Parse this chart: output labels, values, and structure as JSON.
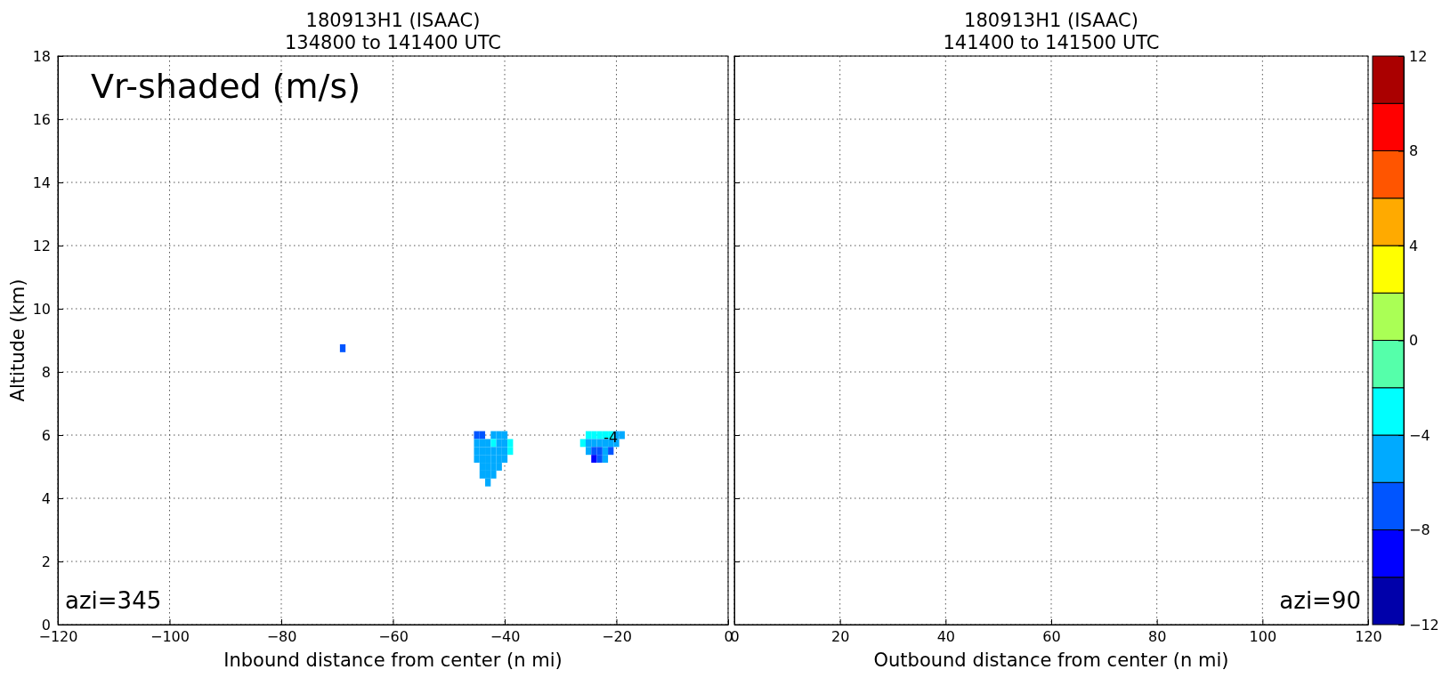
{
  "chart_data": [
    {
      "type": "scatter",
      "title": "180913H1 (ISAAC)",
      "subtitle": "134800 to 141400 UTC",
      "xlabel": "Inbound distance from center (n mi)",
      "ylabel": "Altitude (km)",
      "marker": "square",
      "grid": true,
      "xlim": [
        -120,
        0
      ],
      "xticks": [
        {
          "value": -120,
          "label": "−120"
        },
        {
          "value": -100,
          "label": "−100"
        },
        {
          "value": -80,
          "label": "−80"
        },
        {
          "value": -60,
          "label": "−60"
        },
        {
          "value": -40,
          "label": "−40"
        },
        {
          "value": -20,
          "label": "−20"
        },
        0
      ],
      "ylim": [
        0,
        18
      ],
      "yticks": [
        0,
        2,
        4,
        6,
        8,
        10,
        12,
        14,
        16,
        18
      ],
      "clim": [
        -12,
        12
      ],
      "cticks": [
        {
          "value": -12,
          "label": "−12"
        },
        {
          "value": -8,
          "label": "−8"
        },
        {
          "value": -4,
          "label": "−4"
        },
        0,
        4,
        8,
        12
      ],
      "x": [
        -69,
        -45,
        -44,
        -42,
        -41,
        -40,
        -45,
        -44,
        -43,
        -42,
        -41,
        -40,
        -39,
        -45,
        -44,
        -43,
        -42,
        -41,
        -40,
        -39,
        -45,
        -44,
        -43,
        -42,
        -41,
        -40,
        -44,
        -43,
        -42,
        -41,
        -44,
        -43,
        -42,
        -43,
        -25,
        -24,
        -23,
        -22,
        -21,
        -20,
        -19,
        -26,
        -25,
        -24,
        -23,
        -22,
        -21,
        -20,
        -25,
        -24,
        -23,
        -22,
        -21,
        -24,
        -23,
        -22
      ],
      "values": [
        8.75,
        6,
        6,
        6,
        6,
        6,
        5.75,
        5.75,
        5.75,
        5.75,
        5.75,
        5.75,
        5.75,
        5.5,
        5.5,
        5.5,
        5.5,
        5.5,
        5.5,
        5.5,
        5.25,
        5.25,
        5.25,
        5.25,
        5.25,
        5.25,
        5,
        5,
        5,
        5,
        4.75,
        4.75,
        4.75,
        4.5,
        6,
        6,
        6,
        6,
        6,
        6,
        6,
        5.75,
        5.75,
        5.75,
        5.75,
        5.75,
        5.75,
        5.75,
        5.5,
        5.5,
        5.5,
        5.5,
        5.5,
        5.25,
        5.25,
        5.25
      ],
      "cvalues": [
        -7,
        -7,
        -7,
        -5,
        -5,
        -5,
        -5,
        -5,
        -5,
        -3,
        -5,
        -5,
        -3,
        -5,
        -5,
        -5,
        -5,
        -5,
        -5,
        -3,
        -5,
        -5,
        -5,
        -5,
        -5,
        -5,
        -5,
        -5,
        -5,
        -5,
        -5,
        -5,
        -5,
        -5,
        -3,
        -3,
        -3,
        -3,
        -3,
        -5,
        -5,
        -3,
        -5,
        -5,
        -5,
        -5,
        -5,
        -5,
        -5,
        -7,
        -7,
        -5,
        -7,
        -9,
        -7,
        -5
      ],
      "annotations": [
        "Vr-shaded (m/s)",
        "azi=345",
        {
          "text": "-4",
          "x": -21,
          "y": 5.9
        }
      ]
    },
    {
      "type": "scatter",
      "title": "180913H1 (ISAAC)",
      "subtitle": "141400 to 141500 UTC",
      "xlabel": "Outbound distance from center (n mi)",
      "grid": true,
      "tick_labels": "x",
      "xlim": [
        0,
        120
      ],
      "xticks": [
        0,
        20,
        40,
        60,
        80,
        100,
        120
      ],
      "ylim": [
        0,
        18
      ],
      "yticks": [
        0,
        2,
        4,
        6,
        8,
        10,
        12,
        14,
        16,
        18
      ],
      "annotations": [
        "azi=90"
      ]
    }
  ]
}
